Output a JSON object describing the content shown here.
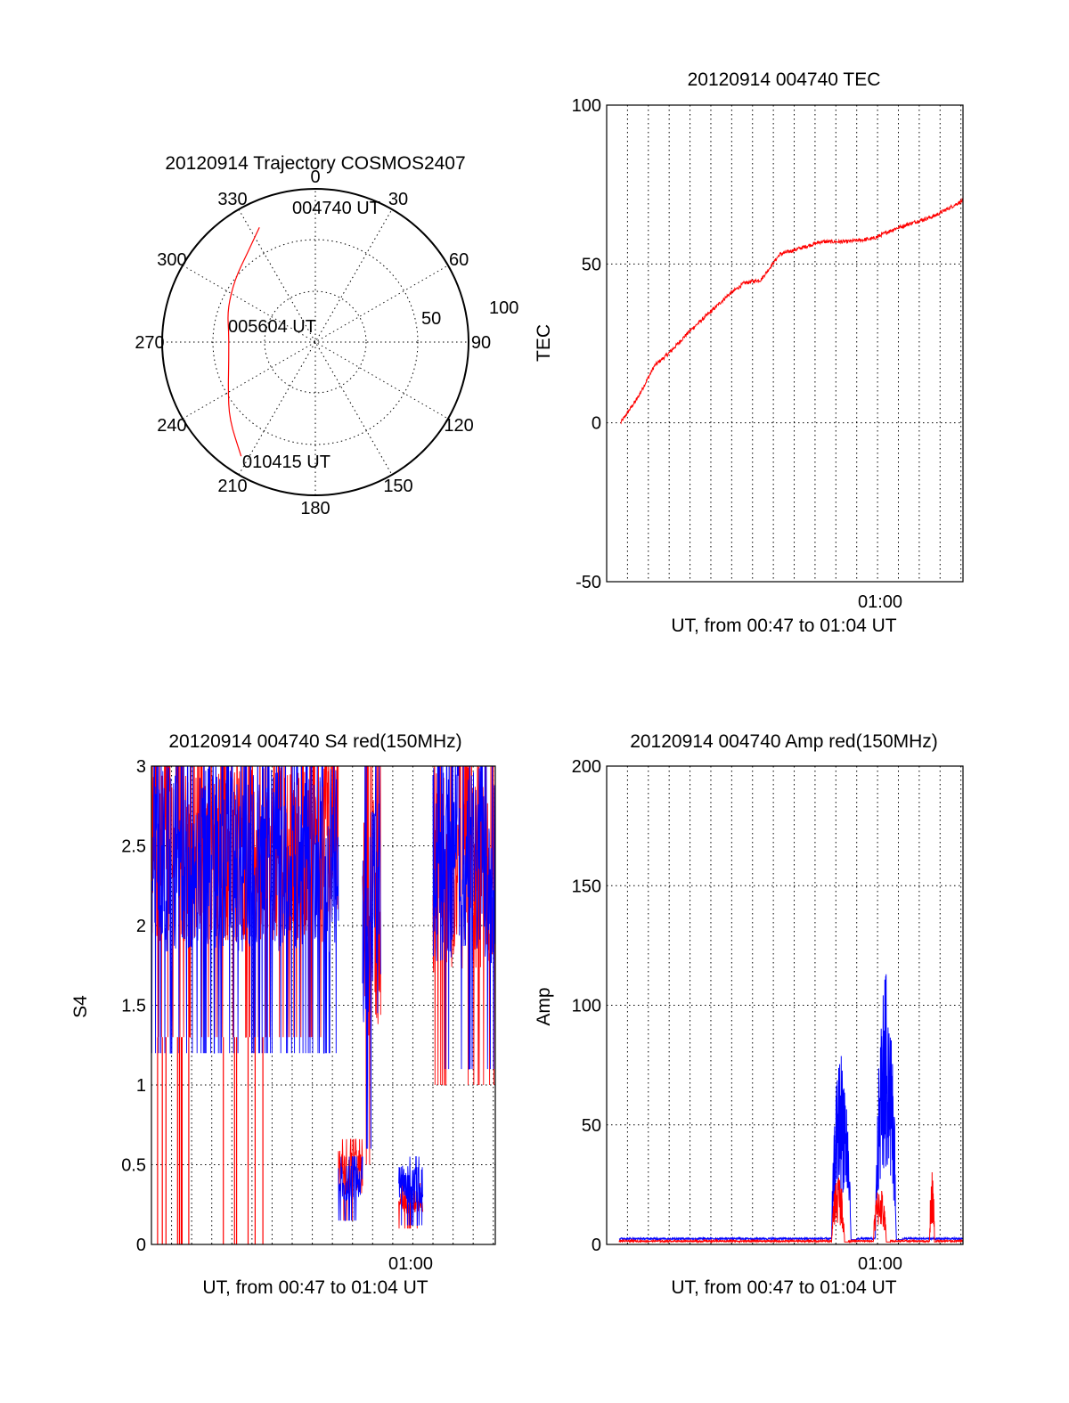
{
  "colors": {
    "red": "#ff0000",
    "blue": "#0000ff",
    "axis": "#000000",
    "background": "#ffffff"
  },
  "chart_data": [
    {
      "type": "polar",
      "title": "20120914 Trajectory COSMOS2407",
      "angle_labels": [
        "0",
        "30",
        "60",
        "90",
        "120",
        "150",
        "180",
        "210",
        "240",
        "270",
        "300",
        "330"
      ],
      "radial_ticks": [
        "50",
        "100"
      ],
      "grid": true,
      "annotations": {
        "start": "004740 UT",
        "middle": "005604 UT",
        "end": "010415 UT"
      },
      "trajectory": {
        "color": "red",
        "points": [
          {
            "azimuth": 334,
            "elevation": 15
          },
          {
            "azimuth": 323,
            "elevation": 24
          },
          {
            "azimuth": 308,
            "elevation": 30
          },
          {
            "azimuth": 290,
            "elevation": 35
          },
          {
            "azimuth": 275,
            "elevation": 39
          },
          {
            "azimuth": 258,
            "elevation": 38
          },
          {
            "azimuth": 242,
            "elevation": 32
          },
          {
            "azimuth": 228,
            "elevation": 22
          },
          {
            "azimuth": 213,
            "elevation": 10
          }
        ]
      }
    },
    {
      "type": "line",
      "title": "20120914 004740 TEC",
      "ylabel": "TEC",
      "xlabel": "UT, from 00:47 to 01:04 UT",
      "ylim": [
        -50,
        100
      ],
      "yticks": [
        "-50",
        "0",
        "50",
        "100"
      ],
      "xlim_minutes": [
        47.0,
        64.1
      ],
      "xtick_label": "01:00",
      "grid": true,
      "series": [
        {
          "color": "red",
          "x": [
            47.67,
            48.5,
            49.3,
            50.0,
            51.0,
            52.0,
            52.8,
            53.6,
            54.4,
            55.3,
            56.3,
            57.3,
            58.5,
            59.8,
            60.8,
            61.7,
            62.7,
            64.1
          ],
          "y": [
            0,
            8,
            18,
            22,
            29,
            35,
            40,
            44,
            45,
            53,
            55,
            57,
            57,
            58,
            61,
            63,
            65,
            70
          ]
        }
      ]
    },
    {
      "type": "line",
      "title": "20120914 004740 S4 red(150MHz)",
      "ylabel": "S4",
      "xlabel": "UT, from 00:47 to 01:04 UT",
      "ylim": [
        0,
        3
      ],
      "yticks": [
        "0",
        "0.5",
        "1",
        "1.5",
        "2",
        "2.5",
        "3"
      ],
      "xlim_minutes": [
        47.0,
        64.1
      ],
      "xtick_label": "01:00",
      "grid": true,
      "series": [
        {
          "color": "red",
          "segments": [
            {
              "x": [
                47.0,
                56.3
              ],
              "y_low": 1.3,
              "y_high": 3.0
            },
            {
              "x": [
                56.3,
                57.5
              ],
              "y_low": 0.15,
              "y_high": 0.6
            },
            {
              "x": [
                57.5,
                58.4
              ],
              "y_low": 0.5,
              "y_high": 2.8
            },
            {
              "x": [
                59.3,
                60.5
              ],
              "y_low": 0.1,
              "y_high": 0.35
            },
            {
              "x": [
                61.0,
                64.1
              ],
              "y_low": 1.0,
              "y_high": 3.0
            }
          ]
        },
        {
          "color": "blue",
          "segments": [
            {
              "x": [
                47.0,
                56.3
              ],
              "y_low": 1.2,
              "y_high": 3.0
            },
            {
              "x": [
                56.3,
                57.5
              ],
              "y_low": 0.15,
              "y_high": 0.5
            },
            {
              "x": [
                57.5,
                58.4
              ],
              "y_low": 0.6,
              "y_high": 2.8
            },
            {
              "x": [
                59.3,
                60.5
              ],
              "y_low": 0.12,
              "y_high": 0.5
            },
            {
              "x": [
                61.0,
                64.1
              ],
              "y_low": 1.1,
              "y_high": 3.0
            }
          ]
        }
      ]
    },
    {
      "type": "line",
      "title": "20120914 004740 Amp red(150MHz)",
      "ylabel": "Amp",
      "xlabel": "UT, from 00:47 to 01:04 UT",
      "ylim": [
        0,
        200
      ],
      "yticks": [
        "0",
        "50",
        "100",
        "150",
        "200"
      ],
      "xlim_minutes": [
        47.0,
        64.1
      ],
      "xtick_label": "01:00",
      "grid": true,
      "series": [
        {
          "color": "red",
          "segments": [
            {
              "x": [
                57.8,
                58.6
              ],
              "y_peak": 30
            },
            {
              "x": [
                59.8,
                60.6
              ],
              "y_peak": 25
            },
            {
              "x": [
                62.5,
                62.8
              ],
              "y_peak": 31
            }
          ],
          "baseline": 1
        },
        {
          "color": "blue",
          "segments": [
            {
              "x": [
                57.8,
                59.0
              ],
              "y_peak": 80
            },
            {
              "x": [
                59.9,
                61.2
              ],
              "y_peak": 112
            }
          ],
          "baseline": 2
        }
      ]
    }
  ]
}
